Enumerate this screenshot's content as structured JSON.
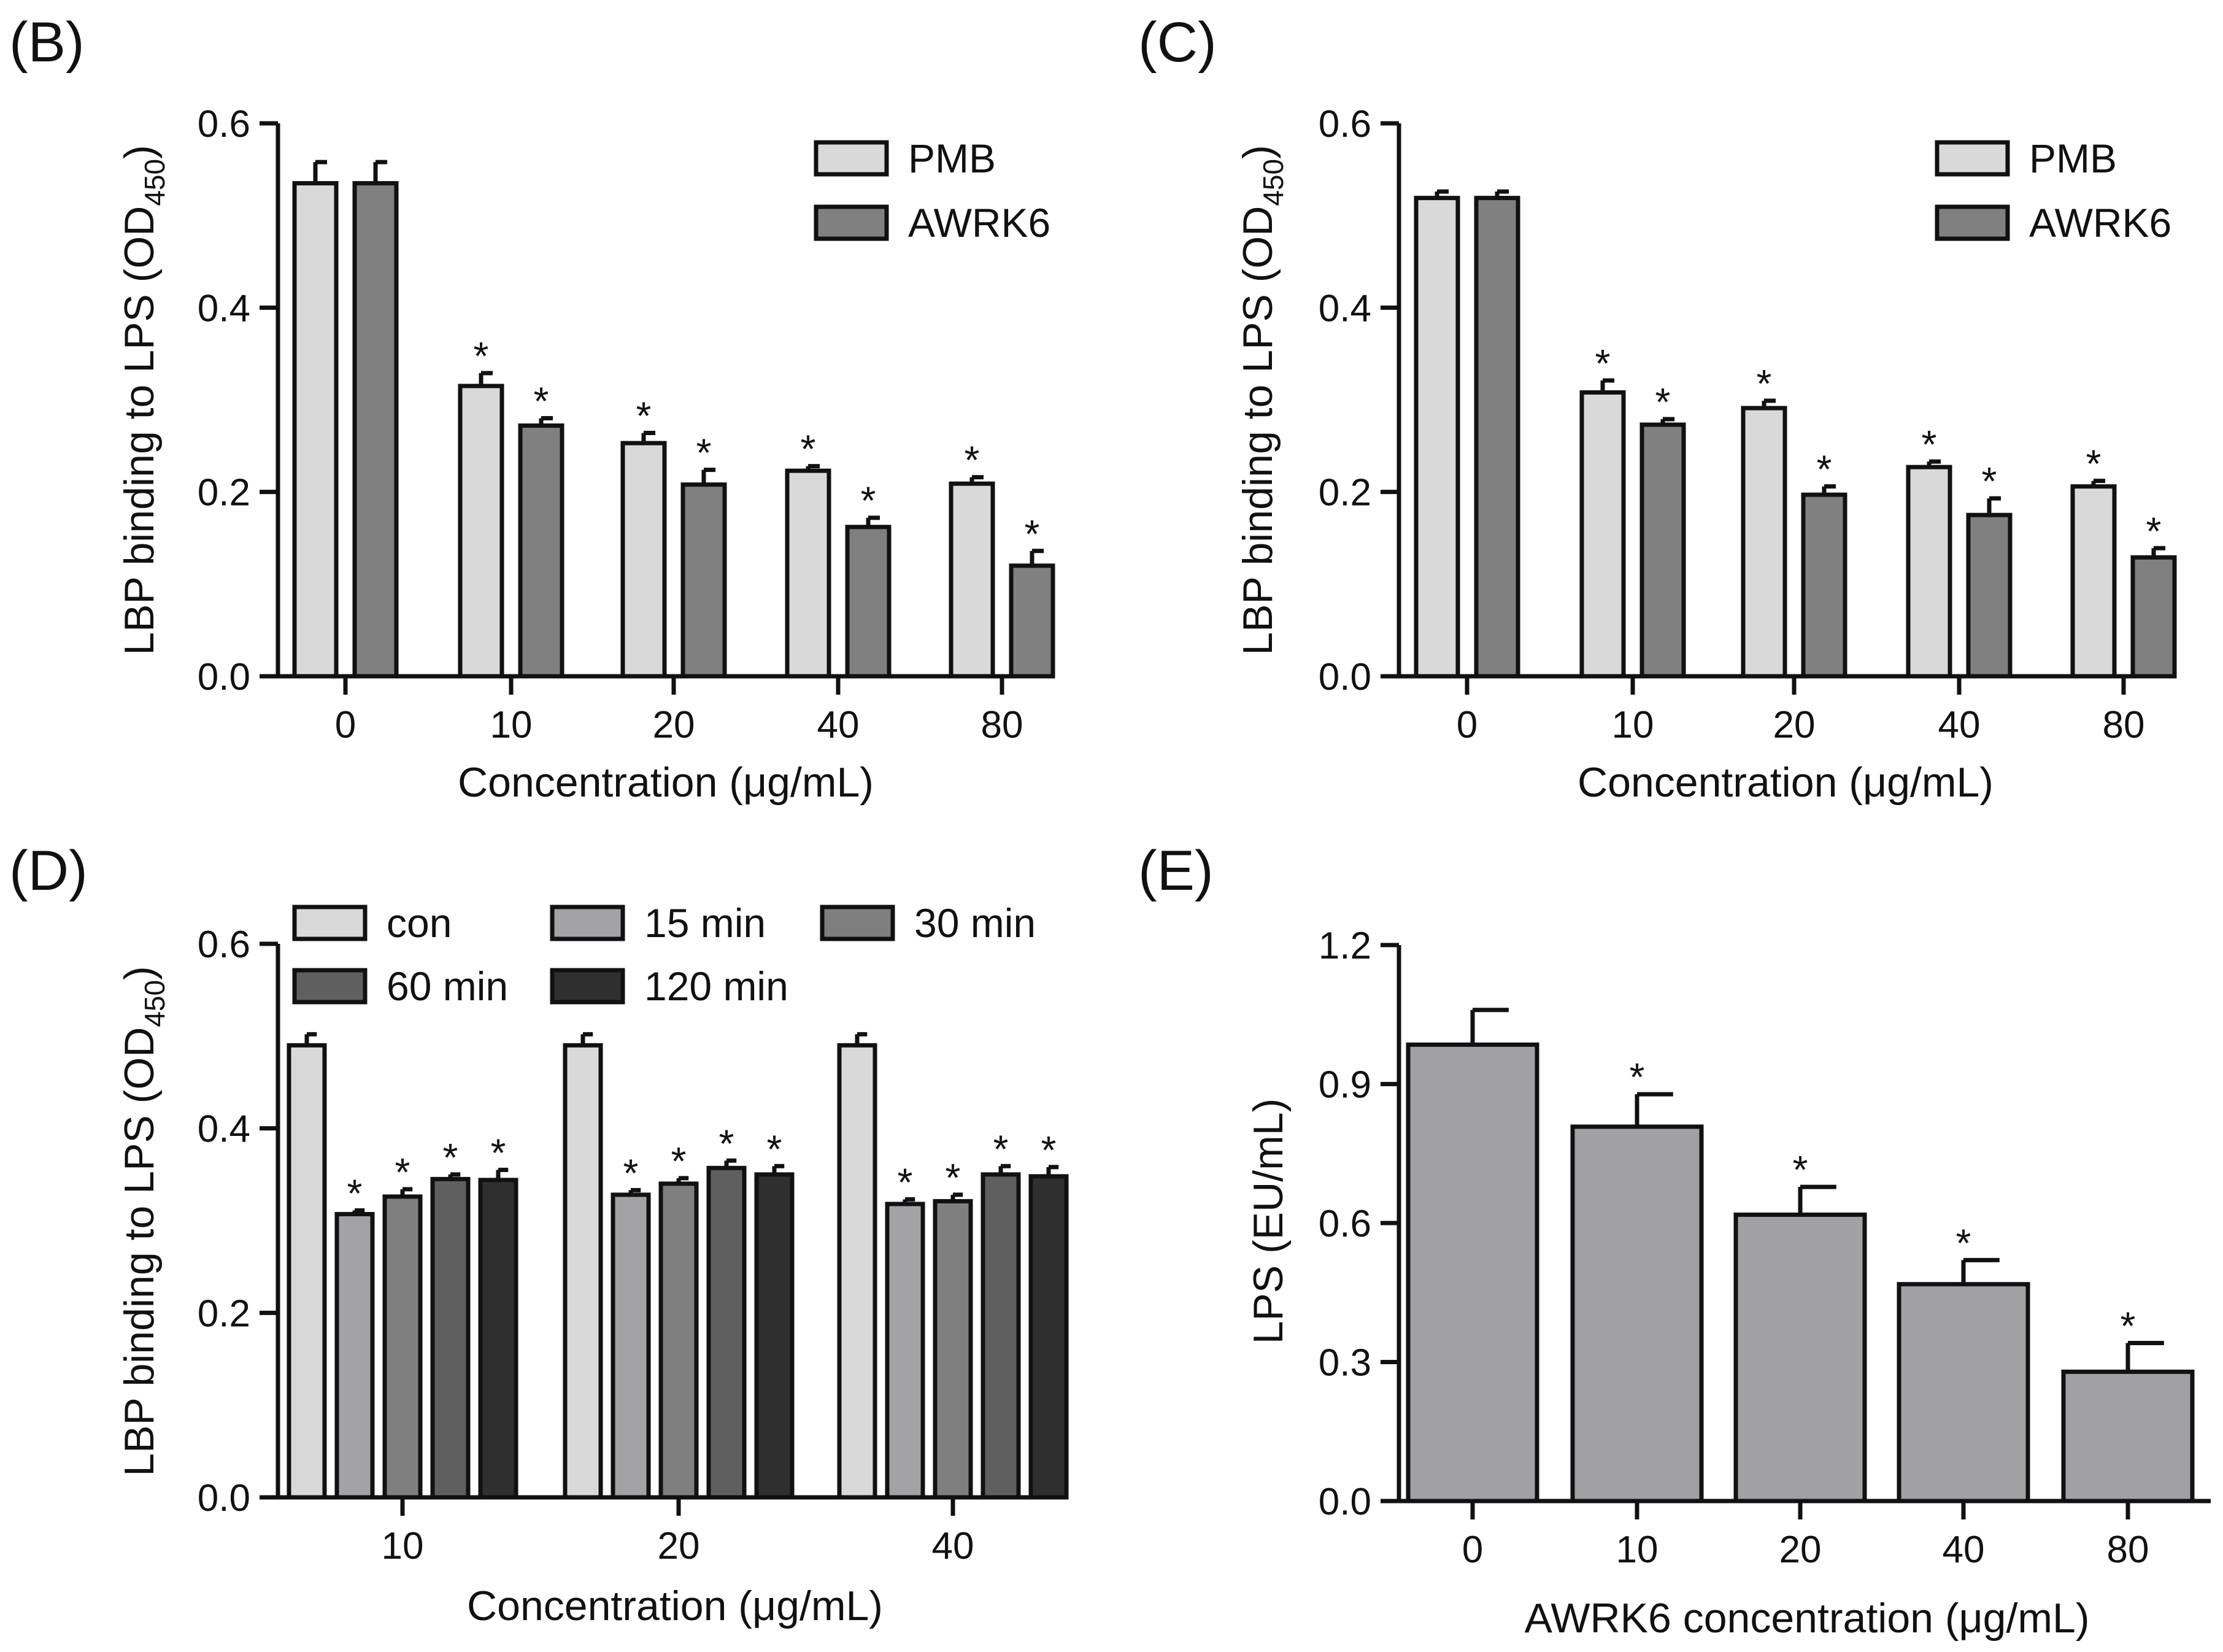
{
  "figure": {
    "panel_count": 4
  },
  "colors": {
    "axis": "#111111",
    "con": "#d9d9d9",
    "pmb": "#d9d9d9",
    "awrk6": "#808080",
    "t15": "#a3a3a5",
    "t30": "#7f7f7f",
    "t60": "#5f5f5f",
    "t120": "#2f2f2f",
    "single": "#a1a1a3"
  },
  "chart_data": [
    {
      "panel": "(B)",
      "type": "bar",
      "xlabel": "Concentration (μg/mL)",
      "ylabel_main": "LBP binding to LPS (OD",
      "ylabel_sub": "450",
      "ylabel_end": ")",
      "ylim": [
        0,
        0.6
      ],
      "yticks": [
        "0.0",
        "0.2",
        "0.4",
        "0.6"
      ],
      "categories": [
        "0",
        "10",
        "20",
        "40",
        "80"
      ],
      "legend_position": "top-right",
      "series": [
        {
          "name": "PMB",
          "color": "#d9d9d9",
          "values": [
            0.535,
            0.315,
            0.253,
            0.223,
            0.209
          ],
          "errors": [
            0.023,
            0.014,
            0.011,
            0.005,
            0.007
          ],
          "sig": [
            "",
            "*",
            "*",
            "*",
            "*"
          ]
        },
        {
          "name": "AWRK6",
          "color": "#808080",
          "values": [
            0.535,
            0.272,
            0.208,
            0.162,
            0.12
          ],
          "errors": [
            0.023,
            0.008,
            0.016,
            0.01,
            0.016
          ],
          "sig": [
            "",
            "*",
            "*",
            "*",
            "*"
          ]
        }
      ]
    },
    {
      "panel": "(C)",
      "type": "bar",
      "xlabel": "Concentration (μg/mL)",
      "ylabel_main": "LBP binding to LPS (OD",
      "ylabel_sub": "450",
      "ylabel_end": ")",
      "ylim": [
        0,
        0.6
      ],
      "yticks": [
        "0.0",
        "0.2",
        "0.4",
        "0.6"
      ],
      "categories": [
        "0",
        "10",
        "20",
        "40",
        "80"
      ],
      "legend_position": "top-right",
      "series": [
        {
          "name": "PMB",
          "color": "#d9d9d9",
          "values": [
            0.519,
            0.308,
            0.291,
            0.227,
            0.206
          ],
          "errors": [
            0.007,
            0.013,
            0.008,
            0.006,
            0.006
          ],
          "sig": [
            "",
            "*",
            "*",
            "*",
            "*"
          ]
        },
        {
          "name": "AWRK6",
          "color": "#808080",
          "values": [
            0.519,
            0.273,
            0.197,
            0.175,
            0.129
          ],
          "errors": [
            0.007,
            0.006,
            0.009,
            0.018,
            0.01
          ],
          "sig": [
            "",
            "*",
            "*",
            "*",
            "*"
          ]
        }
      ]
    },
    {
      "panel": "(D)",
      "type": "bar",
      "xlabel": "Concentration (μg/mL)",
      "ylabel_main": "LBP binding to LPS (OD",
      "ylabel_sub": "450",
      "ylabel_end": ")",
      "ylim": [
        0,
        0.6
      ],
      "yticks": [
        "0.0",
        "0.2",
        "0.4",
        "0.6"
      ],
      "categories": [
        "10",
        "20",
        "40"
      ],
      "legend_position": "top",
      "series": [
        {
          "name": "con",
          "color": "#d9d9d9",
          "values": [
            0.49,
            0.49,
            0.49
          ],
          "errors": [
            0.012,
            0.012,
            0.012
          ],
          "sig": [
            "",
            "",
            ""
          ]
        },
        {
          "name": "15 min",
          "color": "#a3a3a5",
          "values": [
            0.307,
            0.328,
            0.318
          ],
          "errors": [
            0.004,
            0.005,
            0.005
          ],
          "sig": [
            "*",
            "*",
            "*"
          ]
        },
        {
          "name": "30 min",
          "color": "#7f7f7f",
          "values": [
            0.326,
            0.34,
            0.321
          ],
          "errors": [
            0.008,
            0.006,
            0.007
          ],
          "sig": [
            "*",
            "*",
            "*"
          ]
        },
        {
          "name": "60 min",
          "color": "#5f5f5f",
          "values": [
            0.345,
            0.357,
            0.35
          ],
          "errors": [
            0.005,
            0.008,
            0.009
          ],
          "sig": [
            "*",
            "*",
            "*"
          ]
        },
        {
          "name": "120 min",
          "color": "#2f2f2f",
          "values": [
            0.344,
            0.35,
            0.348
          ],
          "errors": [
            0.011,
            0.009,
            0.01
          ],
          "sig": [
            "*",
            "*",
            "*"
          ]
        }
      ]
    },
    {
      "panel": "(E)",
      "type": "bar",
      "xlabel": "AWRK6 concentration (μg/mL)",
      "ylabel_main": "LPS (EU/mL)",
      "ylabel_sub": "",
      "ylabel_end": "",
      "ylim": [
        0,
        1.2
      ],
      "yticks": [
        "0.0",
        "0.3",
        "0.6",
        "0.9",
        "1.2"
      ],
      "categories": [
        "0",
        "10",
        "20",
        "40",
        "80"
      ],
      "legend_position": "none",
      "series": [
        {
          "name": "LPS",
          "color": "#a1a1a3",
          "values": [
            0.985,
            0.808,
            0.618,
            0.468,
            0.279
          ],
          "errors": [
            0.075,
            0.07,
            0.06,
            0.052,
            0.062
          ],
          "sig": [
            "",
            "*",
            "*",
            "*",
            "*"
          ]
        }
      ]
    }
  ]
}
